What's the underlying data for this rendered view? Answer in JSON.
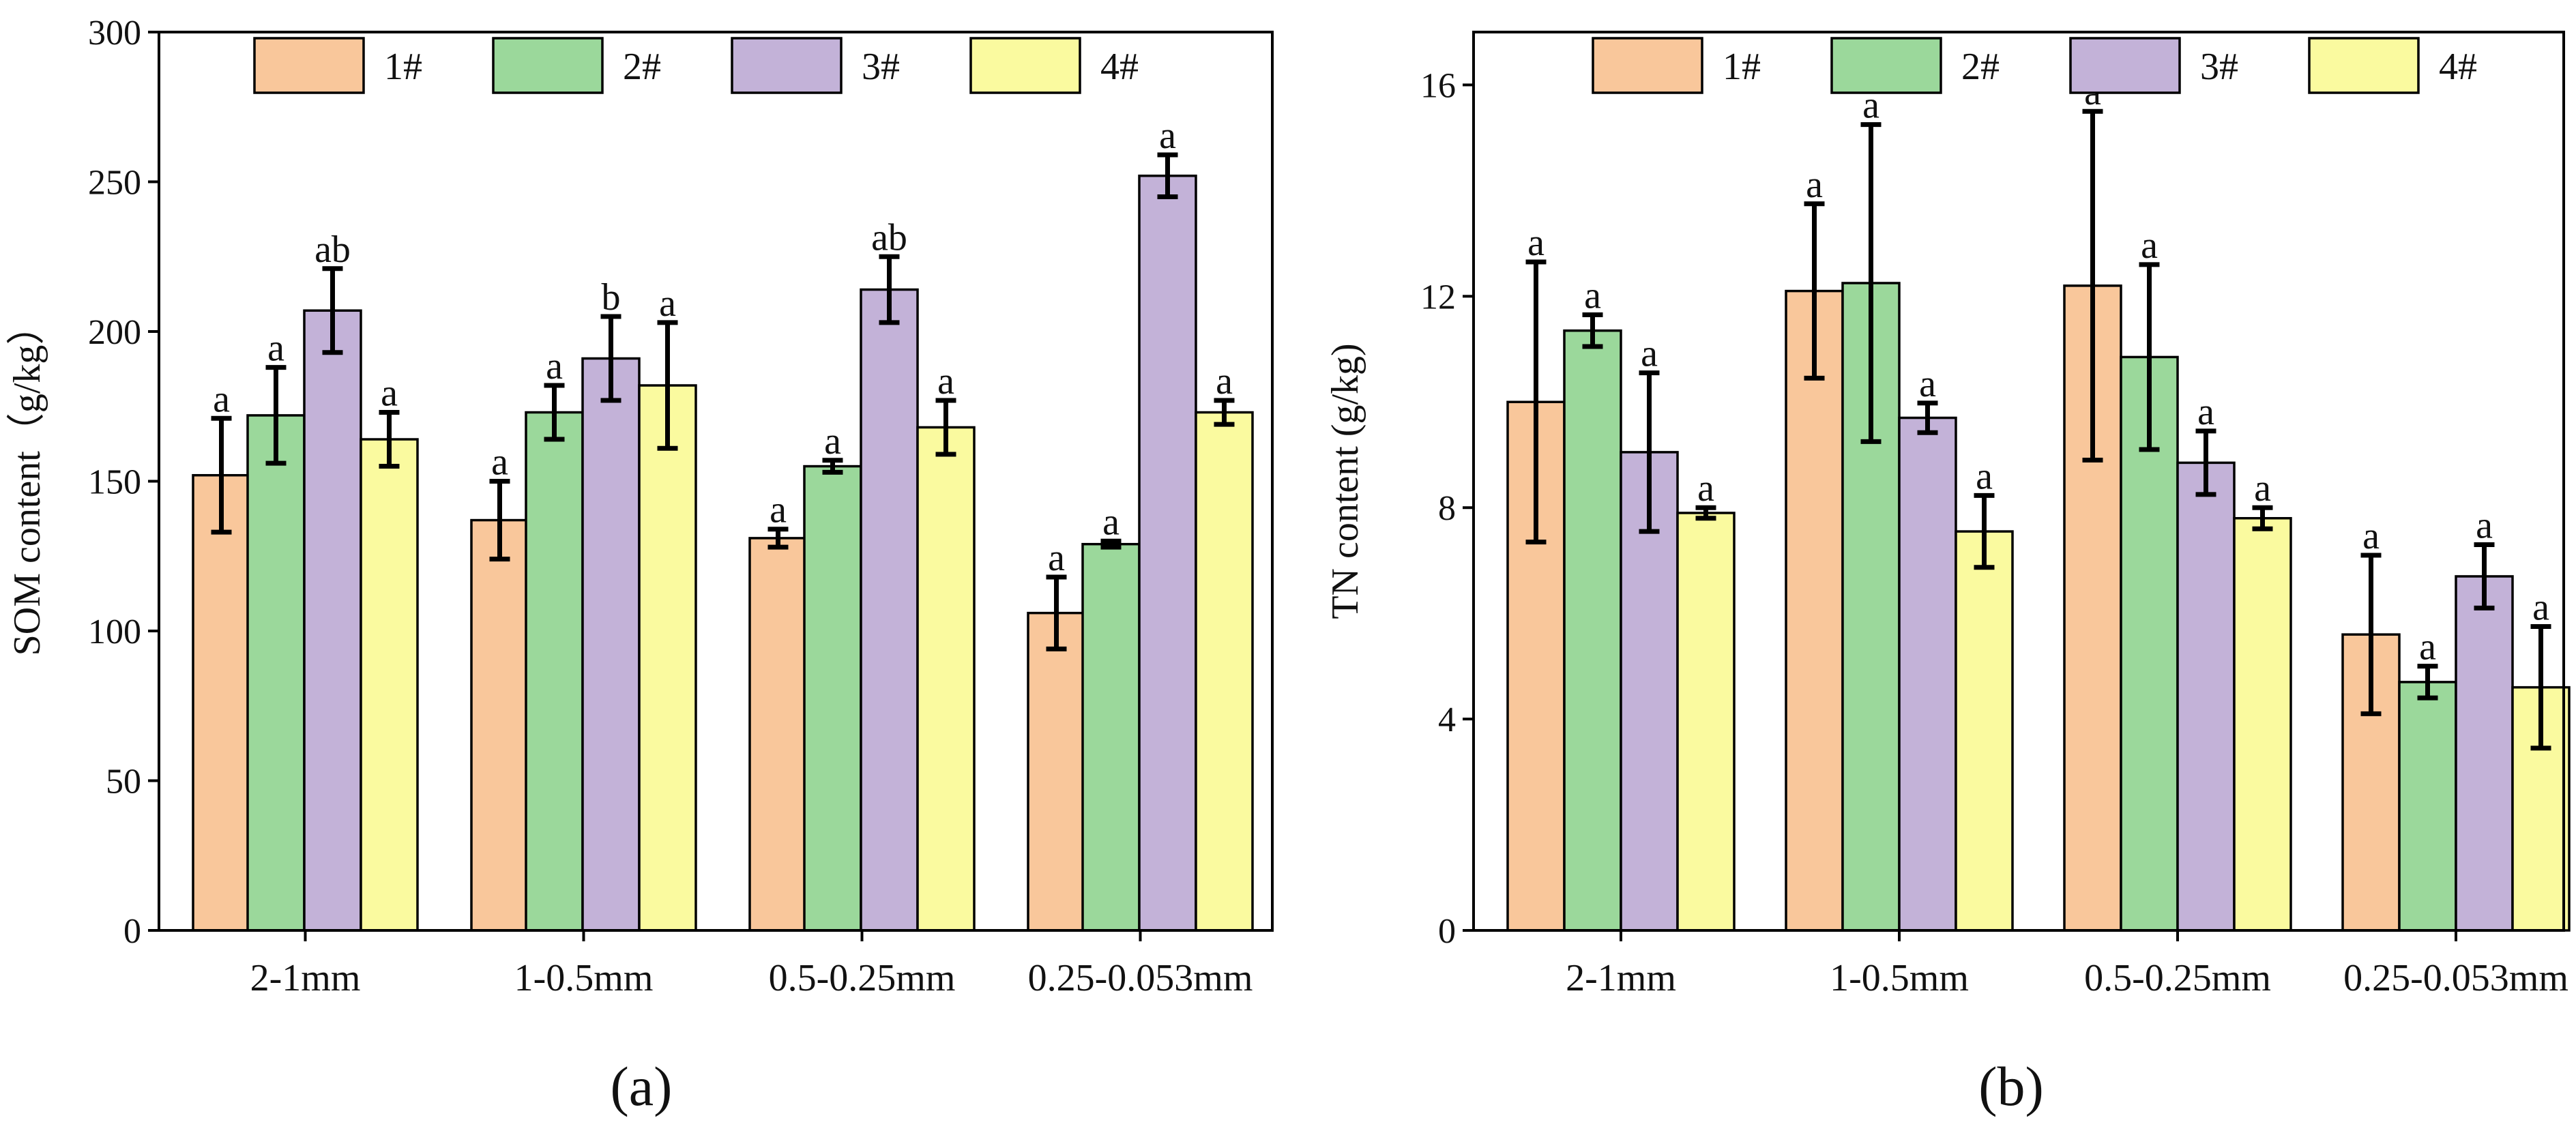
{
  "colors": {
    "1#": "#f9c79b",
    "2#": "#9bd89b",
    "3#": "#c3b2d8",
    "4#": "#fafa9f",
    "axis": "#000000"
  },
  "chart_data": [
    {
      "type": "bar",
      "panel_label": "(a)",
      "title": "",
      "xlabel": "",
      "ylabel": "SOM content（g/kg）",
      "ylim": [
        0,
        300
      ],
      "yticks": [
        0,
        50,
        100,
        150,
        200,
        250,
        300
      ],
      "ytick_labels": [
        "0",
        "50",
        "100",
        "150",
        "200",
        "250",
        "300"
      ],
      "legend": {
        "placement": "top",
        "entries": [
          "1#",
          "2#",
          "3#",
          "4#"
        ]
      },
      "categories": [
        "2-1mm",
        "1-0.5mm",
        "0.5-0.25mm",
        "0.25-0.053mm"
      ],
      "series": [
        {
          "name": "1#",
          "values": [
            152,
            137,
            131,
            106
          ],
          "errors": [
            19,
            13,
            3,
            12
          ],
          "labels": [
            "a",
            "a",
            "a",
            "a"
          ]
        },
        {
          "name": "2#",
          "values": [
            172,
            173,
            155,
            129
          ],
          "errors": [
            16,
            9,
            2,
            1
          ],
          "labels": [
            "a",
            "a",
            "a",
            "a"
          ]
        },
        {
          "name": "3#",
          "values": [
            207,
            191,
            214,
            252
          ],
          "errors": [
            14,
            14,
            11,
            7
          ],
          "labels": [
            "ab",
            "b",
            "ab",
            "a"
          ]
        },
        {
          "name": "4#",
          "values": [
            164,
            182,
            168,
            173
          ],
          "errors": [
            9,
            21,
            9,
            4
          ],
          "labels": [
            "a",
            "a",
            "a",
            "a"
          ]
        }
      ]
    },
    {
      "type": "bar",
      "panel_label": "(b)",
      "title": "",
      "xlabel": "",
      "ylabel": "TN content (g/kg)",
      "ylim": [
        0,
        17
      ],
      "yticks": [
        0,
        4,
        8,
        12,
        16
      ],
      "ytick_labels": [
        "0",
        "4",
        "8",
        "12",
        "16"
      ],
      "legend": {
        "placement": "top",
        "entries": [
          "1#",
          "2#",
          "3#",
          "4#"
        ]
      },
      "categories": [
        "2-1mm",
        "1-0.5mm",
        "0.5-0.25mm",
        "0.25-0.053mm"
      ],
      "series": [
        {
          "name": "1#",
          "values": [
            10.0,
            12.1,
            12.2,
            5.6
          ],
          "errors": [
            2.65,
            1.65,
            3.3,
            1.5
          ],
          "labels": [
            "a",
            "a",
            "a",
            "a"
          ]
        },
        {
          "name": "2#",
          "values": [
            11.35,
            12.25,
            10.85,
            4.7
          ],
          "errors": [
            0.3,
            3.0,
            1.75,
            0.3
          ],
          "labels": [
            "a",
            "a",
            "a",
            "a"
          ]
        },
        {
          "name": "3#",
          "values": [
            9.05,
            9.7,
            8.85,
            6.7
          ],
          "errors": [
            1.5,
            0.28,
            0.6,
            0.6
          ],
          "labels": [
            "a",
            "a",
            "a",
            "a"
          ]
        },
        {
          "name": "4#",
          "values": [
            7.9,
            7.55,
            7.8,
            4.6
          ],
          "errors": [
            0.1,
            0.68,
            0.2,
            1.15
          ],
          "labels": [
            "a",
            "a",
            "a",
            "a"
          ]
        }
      ]
    }
  ]
}
